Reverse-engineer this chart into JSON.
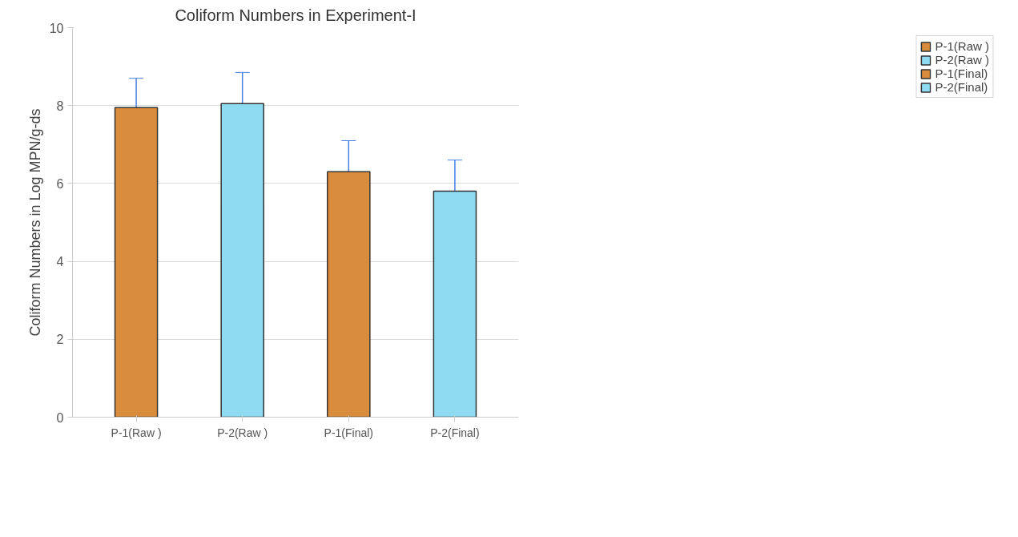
{
  "chart_data": {
    "type": "bar",
    "title": "Coliform Numbers in Experiment-I",
    "ylabel": "Coliform Numbers in Log MPN/g-ds",
    "categories": [
      "P-1(Raw )",
      "P-2(Raw )",
      "P-1(Final)",
      "P-2(Final)"
    ],
    "series": [
      {
        "name": "P-1(Raw )",
        "color": "#d98c3c",
        "values": [
          7.95,
          null,
          null,
          null
        ],
        "errors": [
          0.75,
          null,
          null,
          null
        ]
      },
      {
        "name": "P-2(Raw )",
        "color": "#8fdcf2",
        "values": [
          null,
          8.05,
          null,
          null
        ],
        "errors": [
          null,
          0.8,
          null,
          null
        ]
      },
      {
        "name": "P-1(Final)",
        "color": "#d98c3c",
        "values": [
          null,
          null,
          6.3,
          null
        ],
        "errors": [
          null,
          null,
          0.8,
          null
        ]
      },
      {
        "name": "P-2(Final)",
        "color": "#8fdcf2",
        "values": [
          null,
          null,
          null,
          5.8
        ],
        "errors": [
          null,
          null,
          null,
          0.8
        ]
      }
    ],
    "ylim": [
      0,
      10
    ],
    "yticks": [
      0,
      2,
      4,
      6,
      8,
      10
    ],
    "grid": "y",
    "legend": "top right"
  }
}
